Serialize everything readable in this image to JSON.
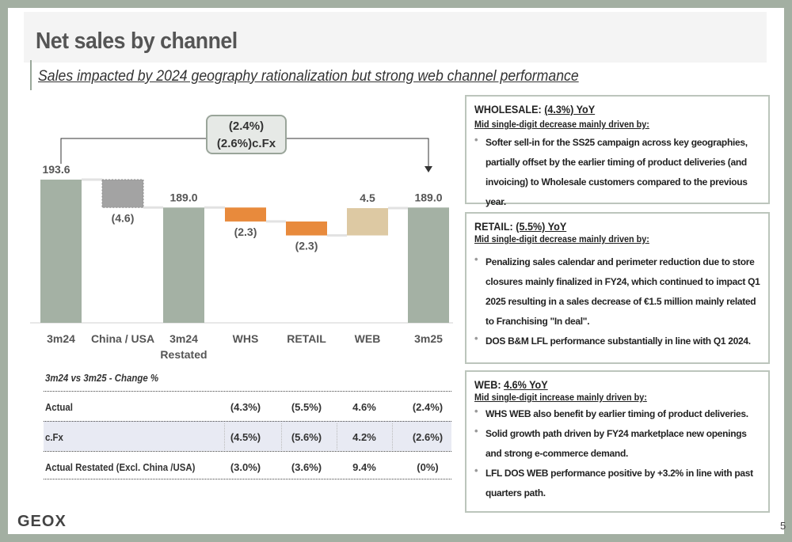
{
  "title": "Net sales by channel",
  "subtitle": "Sales impacted by 2024 geography rationalization but strong web channel performance",
  "callout": {
    "line1": "(2.4%)",
    "line2": "(2.6%)c.Fx"
  },
  "chart_data": {
    "type": "bar",
    "subtype": "waterfall",
    "categories": [
      "3m24",
      "China / USA",
      "3m24 Restated",
      "WHS",
      "RETAIL",
      "WEB",
      "3m25"
    ],
    "category_lines": [
      [
        "3m24"
      ],
      [
        "China / USA"
      ],
      [
        "3m24",
        "Restated"
      ],
      [
        "WHS"
      ],
      [
        "RETAIL"
      ],
      [
        "WEB"
      ],
      [
        "3m25"
      ]
    ],
    "values": [
      193.6,
      -4.6,
      189.0,
      -2.3,
      -2.3,
      4.5,
      189.0
    ],
    "labels": [
      "193.6",
      "(4.6)",
      "189.0",
      "(2.3)",
      "(2.3)",
      "4.5",
      "189.0"
    ],
    "kinds": [
      "total",
      "delta",
      "total",
      "delta",
      "delta",
      "delta",
      "total"
    ],
    "colors": {
      "total": "#a4b1a4",
      "china": "#a3a3a3",
      "negative": "#e88a3c",
      "positive": "#ddc9a3"
    },
    "annotation": "(2.4%) (2.6%)c.Fx",
    "legend": "none",
    "grid": false
  },
  "table": {
    "title": "3m24 vs 3m25 - Change %",
    "rows": [
      {
        "label": "Actual",
        "values": [
          "(4.3%)",
          "(5.5%)",
          "4.6%",
          "(2.4%)"
        ]
      },
      {
        "label": "c.Fx",
        "values": [
          "(4.5%)",
          "(5.6%)",
          "4.2%",
          "(2.6%)"
        ]
      },
      {
        "label": "Actual Restated (Excl. China /USA)",
        "values": [
          "(3.0%)",
          "(3.6%)",
          "9.4%",
          "(0%)"
        ]
      }
    ]
  },
  "boxes": {
    "wholesale": {
      "head": "WHOLESALE: ",
      "head_value": "(4.3%) YoY",
      "lead": "Mid single-digit decrease mainly driven by:",
      "bullets": [
        "Softer sell-in for the SS25 campaign across key geographies, partially offset by the earlier timing of product deliveries (and invoicing)  to Wholesale customers compared to the previous year."
      ]
    },
    "retail": {
      "head": "RETAIL: ",
      "head_value": "(5.5%) YoY",
      "lead": "Mid single-digit decrease mainly driven by:",
      "bullets": [
        "Penalizing sales calendar and perimeter reduction due to store closures mainly finalized in FY24, which continued to impact  Q1 2025 resulting  in a sales decrease of €1.5 million mainly related to Franchising \"In deal\".",
        "DOS B&M LFL performance substantially in line with Q1 2024."
      ]
    },
    "web": {
      "head": "WEB: ",
      "head_value": "4.6% YoY",
      "lead": "Mid single-digit increase mainly driven by:",
      "bullets": [
        "WHS WEB also benefit by earlier timing of product deliveries.",
        "Solid growth path driven by FY24 marketplace new openings and strong e-commerce demand.",
        "LFL DOS WEB performance positive by +3.2% in line with past quarters path."
      ]
    }
  },
  "logo": "GEOX",
  "page_number": "5"
}
